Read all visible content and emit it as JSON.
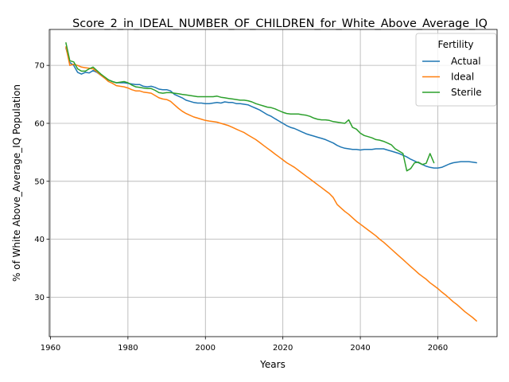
{
  "chart_data": {
    "type": "line",
    "title": "Score_2_in_IDEAL_NUMBER_OF_CHILDREN_for_White_Above_Average_IQ",
    "xlabel": "Years",
    "ylabel": "% of White Above_Average_IQ Population",
    "xlim": [
      1959.7,
      2075.3
    ],
    "ylim": [
      23.2,
      76.2
    ],
    "x_ticks": [
      1960,
      1980,
      2000,
      2020,
      2040,
      2060
    ],
    "y_ticks": [
      30,
      40,
      50,
      60,
      70
    ],
    "grid": true,
    "legend": {
      "title": "Fertility",
      "position": "top-right"
    },
    "series": [
      {
        "name": "Actual",
        "color": "#1f77b4",
        "points": [
          [
            1964,
            73.0
          ],
          [
            1965,
            70.5
          ],
          [
            1966,
            70.0
          ],
          [
            1967,
            68.8
          ],
          [
            1968,
            68.5
          ],
          [
            1969,
            68.8
          ],
          [
            1970,
            68.7
          ],
          [
            1971,
            69.1
          ],
          [
            1972,
            68.8
          ],
          [
            1973,
            68.3
          ],
          [
            1974,
            67.8
          ],
          [
            1975,
            67.5
          ],
          [
            1976,
            67.2
          ],
          [
            1977,
            67.0
          ],
          [
            1978,
            67.0
          ],
          [
            1979,
            67.0
          ],
          [
            1980,
            66.9
          ],
          [
            1981,
            66.8
          ],
          [
            1982,
            66.7
          ],
          [
            1983,
            66.7
          ],
          [
            1984,
            66.4
          ],
          [
            1985,
            66.3
          ],
          [
            1986,
            66.4
          ],
          [
            1987,
            66.2
          ],
          [
            1988,
            65.9
          ],
          [
            1989,
            65.8
          ],
          [
            1990,
            65.8
          ],
          [
            1991,
            65.6
          ],
          [
            1992,
            65.0
          ],
          [
            1993,
            64.7
          ],
          [
            1994,
            64.4
          ],
          [
            1995,
            64.0
          ],
          [
            1996,
            63.8
          ],
          [
            1997,
            63.6
          ],
          [
            1998,
            63.5
          ],
          [
            1999,
            63.5
          ],
          [
            2000,
            63.4
          ],
          [
            2001,
            63.4
          ],
          [
            2002,
            63.5
          ],
          [
            2003,
            63.6
          ],
          [
            2004,
            63.5
          ],
          [
            2005,
            63.7
          ],
          [
            2006,
            63.6
          ],
          [
            2007,
            63.6
          ],
          [
            2008,
            63.4
          ],
          [
            2009,
            63.4
          ],
          [
            2010,
            63.3
          ],
          [
            2011,
            63.2
          ],
          [
            2012,
            62.9
          ],
          [
            2013,
            62.6
          ],
          [
            2014,
            62.3
          ],
          [
            2015,
            61.9
          ],
          [
            2016,
            61.5
          ],
          [
            2017,
            61.2
          ],
          [
            2018,
            60.8
          ],
          [
            2019,
            60.4
          ],
          [
            2020,
            60.0
          ],
          [
            2021,
            59.6
          ],
          [
            2022,
            59.3
          ],
          [
            2023,
            59.1
          ],
          [
            2024,
            58.8
          ],
          [
            2025,
            58.5
          ],
          [
            2026,
            58.2
          ],
          [
            2027,
            58.0
          ],
          [
            2028,
            57.8
          ],
          [
            2029,
            57.6
          ],
          [
            2030,
            57.4
          ],
          [
            2031,
            57.2
          ],
          [
            2032,
            56.9
          ],
          [
            2033,
            56.6
          ],
          [
            2034,
            56.2
          ],
          [
            2035,
            55.9
          ],
          [
            2036,
            55.7
          ],
          [
            2037,
            55.6
          ],
          [
            2038,
            55.5
          ],
          [
            2039,
            55.5
          ],
          [
            2040,
            55.4
          ],
          [
            2041,
            55.5
          ],
          [
            2042,
            55.5
          ],
          [
            2043,
            55.5
          ],
          [
            2044,
            55.6
          ],
          [
            2045,
            55.6
          ],
          [
            2046,
            55.6
          ],
          [
            2047,
            55.4
          ],
          [
            2048,
            55.2
          ],
          [
            2049,
            55.0
          ],
          [
            2050,
            54.8
          ],
          [
            2051,
            54.5
          ],
          [
            2052,
            54.2
          ],
          [
            2053,
            53.8
          ],
          [
            2054,
            53.5
          ],
          [
            2055,
            53.2
          ],
          [
            2056,
            52.9
          ],
          [
            2057,
            52.6
          ],
          [
            2058,
            52.4
          ],
          [
            2059,
            52.3
          ],
          [
            2060,
            52.3
          ],
          [
            2061,
            52.4
          ],
          [
            2062,
            52.7
          ],
          [
            2063,
            53.0
          ],
          [
            2064,
            53.2
          ],
          [
            2065,
            53.3
          ],
          [
            2066,
            53.4
          ],
          [
            2067,
            53.4
          ],
          [
            2068,
            53.4
          ],
          [
            2069,
            53.3
          ],
          [
            2070,
            53.2
          ]
        ]
      },
      {
        "name": "Ideal",
        "color": "#ff7f0e",
        "points": [
          [
            1964,
            73.2
          ],
          [
            1965,
            70.0
          ],
          [
            1966,
            70.2
          ],
          [
            1967,
            70.0
          ],
          [
            1968,
            69.7
          ],
          [
            1969,
            69.6
          ],
          [
            1970,
            69.5
          ],
          [
            1971,
            69.4
          ],
          [
            1972,
            68.9
          ],
          [
            1973,
            68.3
          ],
          [
            1974,
            67.8
          ],
          [
            1975,
            67.2
          ],
          [
            1976,
            66.9
          ],
          [
            1977,
            66.5
          ],
          [
            1978,
            66.4
          ],
          [
            1979,
            66.3
          ],
          [
            1980,
            66.1
          ],
          [
            1981,
            65.8
          ],
          [
            1982,
            65.6
          ],
          [
            1983,
            65.6
          ],
          [
            1984,
            65.4
          ],
          [
            1985,
            65.3
          ],
          [
            1986,
            65.2
          ],
          [
            1987,
            64.8
          ],
          [
            1988,
            64.4
          ],
          [
            1989,
            64.2
          ],
          [
            1990,
            64.1
          ],
          [
            1991,
            63.8
          ],
          [
            1992,
            63.2
          ],
          [
            1993,
            62.6
          ],
          [
            1994,
            62.1
          ],
          [
            1995,
            61.7
          ],
          [
            1996,
            61.4
          ],
          [
            1997,
            61.1
          ],
          [
            1998,
            60.9
          ],
          [
            1999,
            60.7
          ],
          [
            2000,
            60.5
          ],
          [
            2001,
            60.4
          ],
          [
            2002,
            60.3
          ],
          [
            2003,
            60.2
          ],
          [
            2004,
            60.0
          ],
          [
            2005,
            59.8
          ],
          [
            2006,
            59.6
          ],
          [
            2007,
            59.3
          ],
          [
            2008,
            59.0
          ],
          [
            2009,
            58.7
          ],
          [
            2010,
            58.4
          ],
          [
            2011,
            58.0
          ],
          [
            2012,
            57.6
          ],
          [
            2013,
            57.2
          ],
          [
            2014,
            56.7
          ],
          [
            2015,
            56.2
          ],
          [
            2016,
            55.7
          ],
          [
            2017,
            55.2
          ],
          [
            2018,
            54.7
          ],
          [
            2019,
            54.2
          ],
          [
            2020,
            53.7
          ],
          [
            2021,
            53.2
          ],
          [
            2022,
            52.8
          ],
          [
            2023,
            52.4
          ],
          [
            2024,
            51.9
          ],
          [
            2025,
            51.4
          ],
          [
            2026,
            50.9
          ],
          [
            2027,
            50.4
          ],
          [
            2028,
            49.9
          ],
          [
            2029,
            49.4
          ],
          [
            2030,
            48.9
          ],
          [
            2031,
            48.4
          ],
          [
            2032,
            47.9
          ],
          [
            2033,
            47.2
          ],
          [
            2034,
            46.0
          ],
          [
            2035,
            45.4
          ],
          [
            2036,
            44.8
          ],
          [
            2037,
            44.3
          ],
          [
            2038,
            43.7
          ],
          [
            2039,
            43.1
          ],
          [
            2040,
            42.6
          ],
          [
            2041,
            42.1
          ],
          [
            2042,
            41.6
          ],
          [
            2043,
            41.1
          ],
          [
            2044,
            40.6
          ],
          [
            2045,
            40.0
          ],
          [
            2046,
            39.5
          ],
          [
            2047,
            38.9
          ],
          [
            2048,
            38.3
          ],
          [
            2049,
            37.7
          ],
          [
            2050,
            37.1
          ],
          [
            2051,
            36.5
          ],
          [
            2052,
            35.9
          ],
          [
            2053,
            35.3
          ],
          [
            2054,
            34.7
          ],
          [
            2055,
            34.1
          ],
          [
            2056,
            33.6
          ],
          [
            2057,
            33.1
          ],
          [
            2058,
            32.5
          ],
          [
            2059,
            32.0
          ],
          [
            2060,
            31.5
          ],
          [
            2061,
            30.9
          ],
          [
            2062,
            30.4
          ],
          [
            2063,
            29.8
          ],
          [
            2064,
            29.2
          ],
          [
            2065,
            28.7
          ],
          [
            2066,
            28.1
          ],
          [
            2067,
            27.5
          ],
          [
            2068,
            27.0
          ],
          [
            2069,
            26.5
          ],
          [
            2070,
            25.9
          ]
        ]
      },
      {
        "name": "Sterile",
        "color": "#2ca02c",
        "points": [
          [
            1964,
            73.9
          ],
          [
            1965,
            70.8
          ],
          [
            1966,
            70.6
          ],
          [
            1967,
            69.4
          ],
          [
            1968,
            69.0
          ],
          [
            1969,
            69.0
          ],
          [
            1970,
            69.4
          ],
          [
            1971,
            69.7
          ],
          [
            1972,
            69.1
          ],
          [
            1973,
            68.5
          ],
          [
            1974,
            68.0
          ],
          [
            1975,
            67.5
          ],
          [
            1976,
            67.2
          ],
          [
            1977,
            67.0
          ],
          [
            1978,
            67.1
          ],
          [
            1979,
            67.2
          ],
          [
            1980,
            67.0
          ],
          [
            1981,
            66.6
          ],
          [
            1982,
            66.3
          ],
          [
            1983,
            66.2
          ],
          [
            1984,
            66.1
          ],
          [
            1985,
            66.0
          ],
          [
            1986,
            66.0
          ],
          [
            1987,
            65.7
          ],
          [
            1988,
            65.3
          ],
          [
            1989,
            65.2
          ],
          [
            1990,
            65.3
          ],
          [
            1991,
            65.3
          ],
          [
            1992,
            65.2
          ],
          [
            1993,
            65.1
          ],
          [
            1994,
            65.0
          ],
          [
            1995,
            64.9
          ],
          [
            1996,
            64.8
          ],
          [
            1997,
            64.7
          ],
          [
            1998,
            64.6
          ],
          [
            1999,
            64.6
          ],
          [
            2000,
            64.6
          ],
          [
            2001,
            64.6
          ],
          [
            2002,
            64.6
          ],
          [
            2003,
            64.7
          ],
          [
            2004,
            64.5
          ],
          [
            2005,
            64.4
          ],
          [
            2006,
            64.3
          ],
          [
            2007,
            64.2
          ],
          [
            2008,
            64.1
          ],
          [
            2009,
            64.0
          ],
          [
            2010,
            64.0
          ],
          [
            2011,
            63.9
          ],
          [
            2012,
            63.7
          ],
          [
            2013,
            63.4
          ],
          [
            2014,
            63.2
          ],
          [
            2015,
            63.0
          ],
          [
            2016,
            62.8
          ],
          [
            2017,
            62.7
          ],
          [
            2018,
            62.5
          ],
          [
            2019,
            62.2
          ],
          [
            2020,
            61.9
          ],
          [
            2021,
            61.7
          ],
          [
            2022,
            61.6
          ],
          [
            2023,
            61.6
          ],
          [
            2024,
            61.6
          ],
          [
            2025,
            61.5
          ],
          [
            2026,
            61.4
          ],
          [
            2027,
            61.2
          ],
          [
            2028,
            60.9
          ],
          [
            2029,
            60.7
          ],
          [
            2030,
            60.6
          ],
          [
            2031,
            60.6
          ],
          [
            2032,
            60.5
          ],
          [
            2033,
            60.3
          ],
          [
            2034,
            60.2
          ],
          [
            2035,
            60.1
          ],
          [
            2036,
            60.0
          ],
          [
            2037,
            60.6
          ],
          [
            2038,
            59.3
          ],
          [
            2039,
            59.0
          ],
          [
            2040,
            58.3
          ],
          [
            2041,
            57.9
          ],
          [
            2042,
            57.7
          ],
          [
            2043,
            57.5
          ],
          [
            2044,
            57.2
          ],
          [
            2045,
            57.1
          ],
          [
            2046,
            56.9
          ],
          [
            2047,
            56.6
          ],
          [
            2048,
            56.3
          ],
          [
            2049,
            55.6
          ],
          [
            2050,
            55.2
          ],
          [
            2051,
            54.8
          ],
          [
            2052,
            51.8
          ],
          [
            2053,
            52.2
          ],
          [
            2054,
            53.2
          ],
          [
            2055,
            53.3
          ],
          [
            2056,
            52.9
          ],
          [
            2057,
            53.1
          ],
          [
            2058,
            54.8
          ],
          [
            2059,
            53.2
          ]
        ]
      }
    ]
  }
}
